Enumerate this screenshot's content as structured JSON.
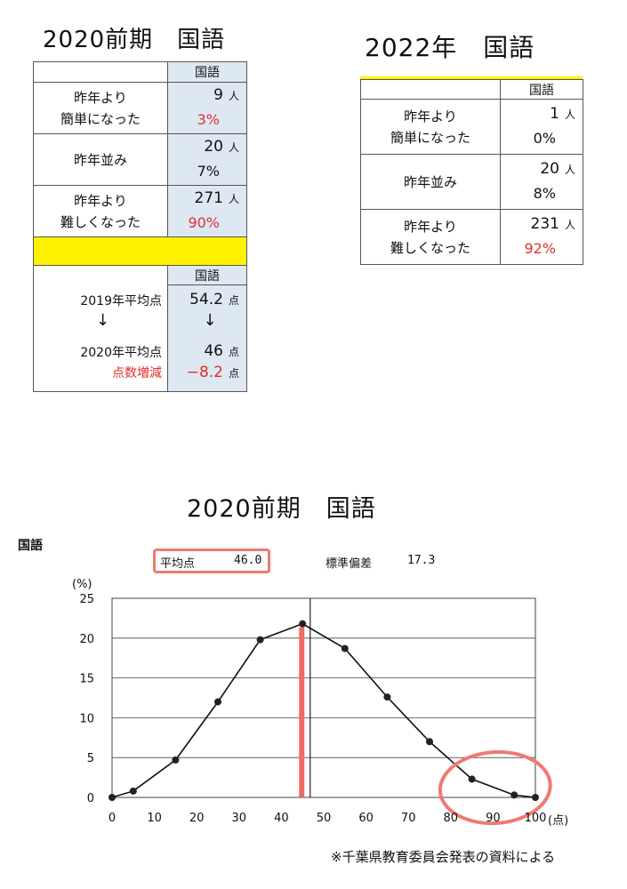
{
  "left_table": {
    "title": "2020前期　国語",
    "header": "国語",
    "rows": [
      {
        "label1": "昨年より",
        "label2": "簡単になった",
        "count": "9",
        "unit": "人",
        "pct": "3%",
        "pct_red": true
      },
      {
        "label1": "昨年並み",
        "label2": "",
        "count": "20",
        "unit": "人",
        "pct": "7%",
        "pct_red": false
      },
      {
        "label1": "昨年より",
        "label2": "難しくなった",
        "count": "271",
        "unit": "人",
        "pct": "90%",
        "pct_red": true
      }
    ],
    "score_header": "国語",
    "score_2019_label": "2019年平均点",
    "score_2019": "54.2",
    "arrow": "↓",
    "score_2020_label": "2020年平均点",
    "score_2020": "46",
    "diff_label": "点数増減",
    "diff": "−8.2",
    "point_unit": "点"
  },
  "right_table": {
    "title": "2022年　国語",
    "header": "国語",
    "rows": [
      {
        "label1": "昨年より",
        "label2": "簡単になった",
        "count": "1",
        "unit": "人",
        "pct": "0%",
        "pct_red": false
      },
      {
        "label1": "昨年並み",
        "label2": "",
        "count": "20",
        "unit": "人",
        "pct": "8%",
        "pct_red": false
      },
      {
        "label1": "昨年より",
        "label2": "難しくなった",
        "count": "231",
        "unit": "人",
        "pct": "92%",
        "pct_red": true
      }
    ]
  },
  "chart_heading": "2020前期　国語",
  "chart_subject": "国語",
  "mean_label": "平均点",
  "mean_value": "46.0",
  "sd_label": "標準偏差",
  "sd_value": "17.3",
  "source_note": "※千葉県教育委員会発表の資料による",
  "colors": {
    "accent_red": "#e0302c",
    "highlight_yellow": "#fff200",
    "cell_blue": "#dde8f3",
    "mark_pink": "#ef7a72"
  },
  "chart_data": {
    "type": "line",
    "title": "2020前期　国語",
    "ylabel": "(%)",
    "xlabel": "(点)",
    "xlim": [
      0,
      100
    ],
    "ylim": [
      0,
      25
    ],
    "xticks": [
      0,
      10,
      20,
      30,
      40,
      50,
      60,
      70,
      80,
      90,
      100
    ],
    "yticks": [
      0,
      5,
      10,
      15,
      20,
      25
    ],
    "grid": true,
    "x": [
      0,
      5,
      15,
      25,
      35,
      45,
      55,
      65,
      75,
      85,
      95,
      100
    ],
    "y": [
      0,
      0.8,
      4.7,
      12.0,
      19.8,
      21.8,
      18.7,
      12.6,
      7.0,
      2.3,
      0.3,
      0
    ],
    "mean": 46.0,
    "mean_line_x": 44.8,
    "divider_x": 46.8
  }
}
